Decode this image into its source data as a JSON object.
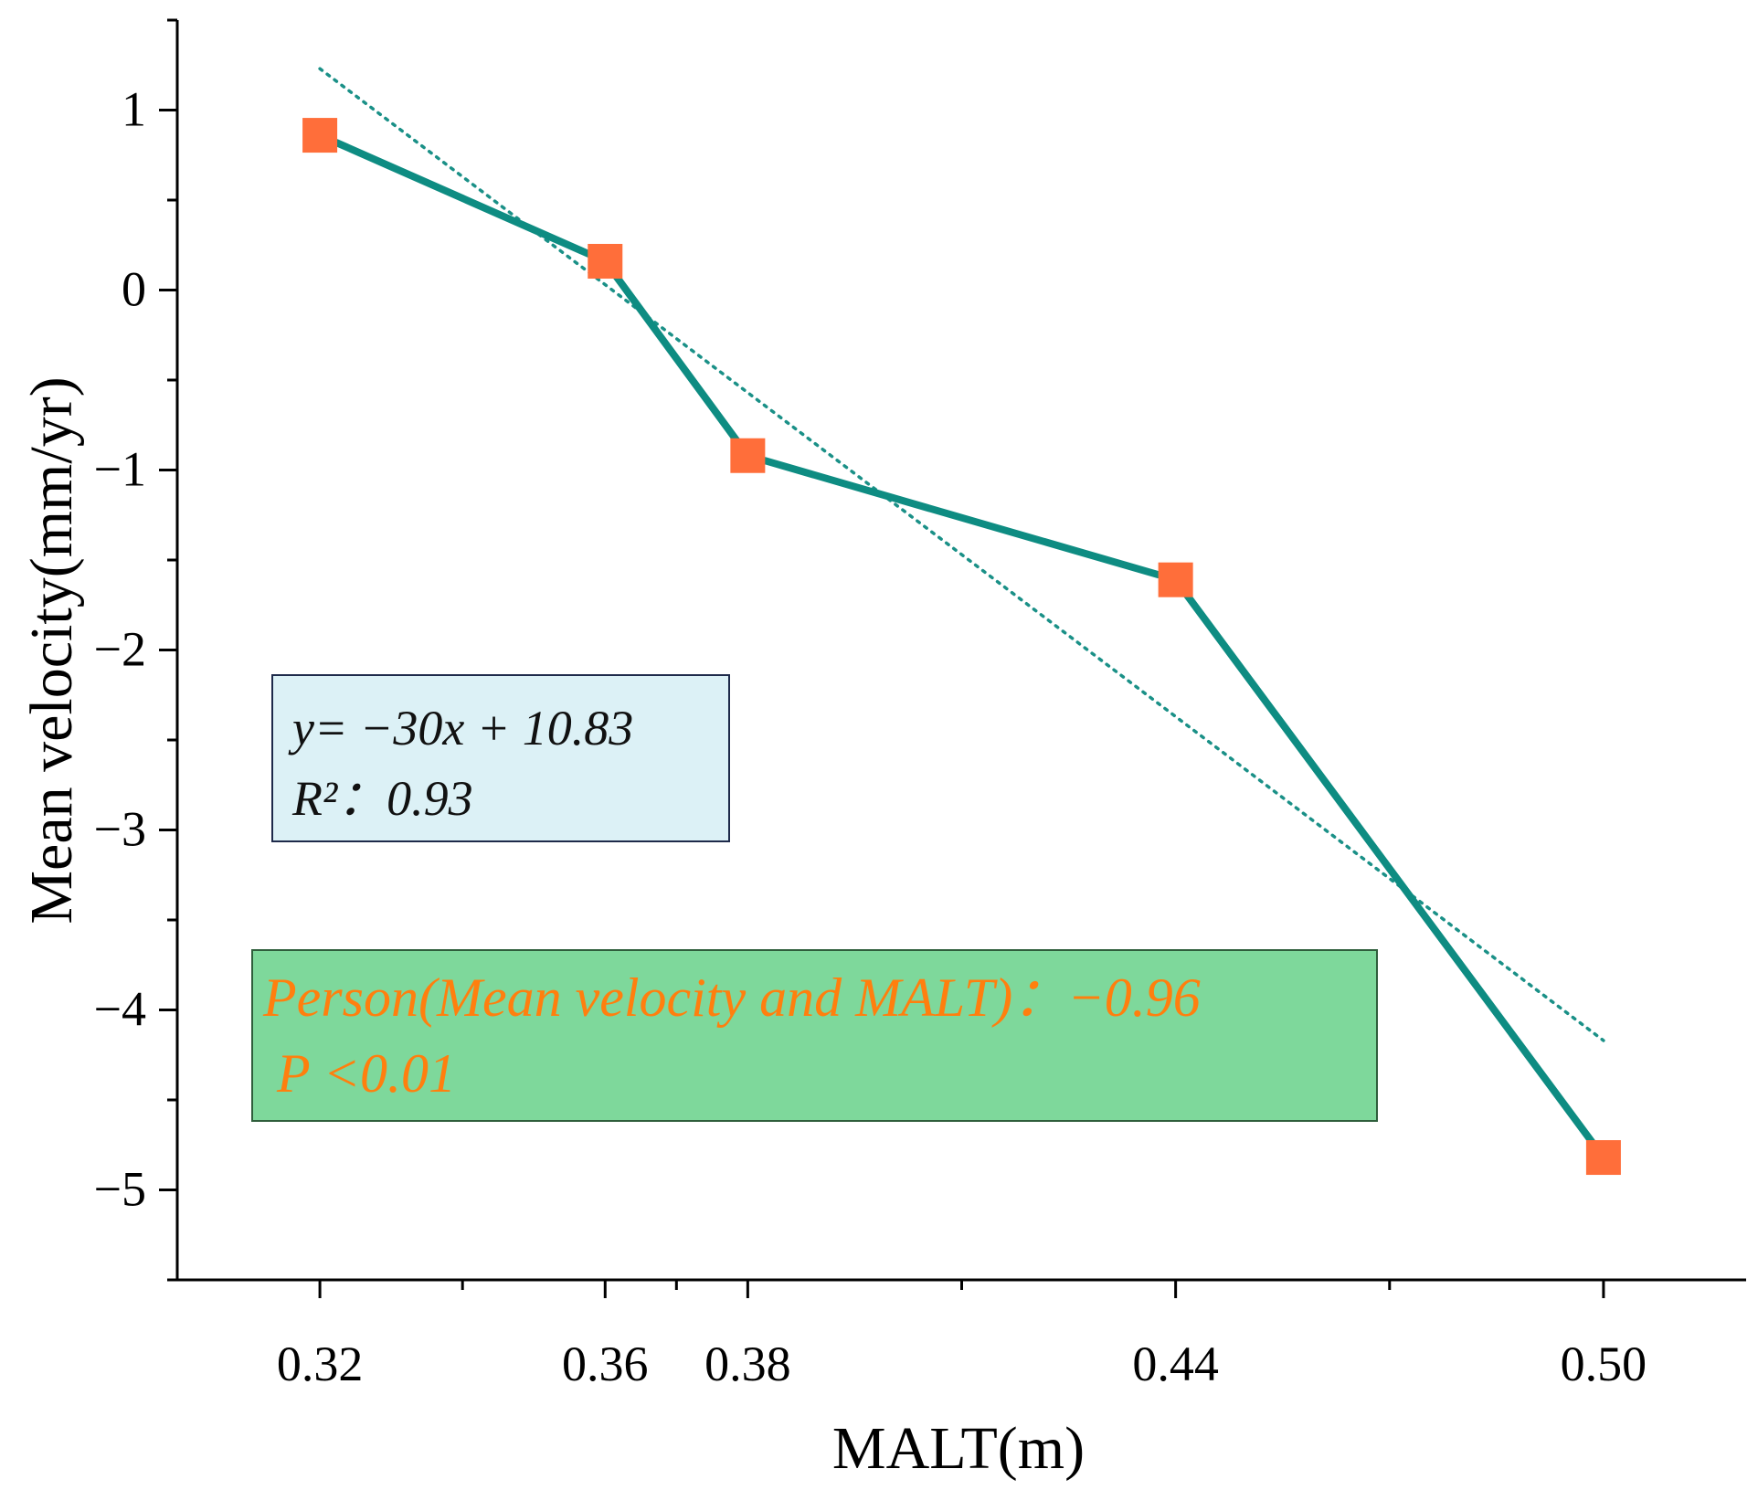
{
  "chart_data": {
    "type": "line",
    "title": "",
    "xlabel": "MALT(m)",
    "ylabel": "Mean velocity(mm/yr)",
    "xlim": [
      0.3,
      0.52
    ],
    "ylim": [
      -5.5,
      1.5
    ],
    "x_ticks": [
      0.32,
      0.36,
      0.38,
      0.44,
      0.5
    ],
    "x_tick_labels": [
      "0.32",
      "0.36",
      "0.38",
      "0.44",
      "0.50"
    ],
    "x_minor_ticks": [
      0.34,
      0.37,
      0.41,
      0.47
    ],
    "y_ticks": [
      1,
      0,
      -1,
      -2,
      -3,
      -4,
      -5
    ],
    "y_tick_labels": [
      "1",
      "0",
      "−1",
      "−2",
      "−3",
      "−4",
      "−5"
    ],
    "y_minor_ticks": [
      1.5,
      0.5,
      -0.5,
      -1.5,
      -2.5,
      -3.5,
      -4.5,
      -5.5
    ],
    "grid": false,
    "series": [
      {
        "name": "Mean velocity",
        "x": [
          0.32,
          0.36,
          0.38,
          0.44,
          0.5
        ],
        "y": [
          0.86,
          0.16,
          -0.92,
          -1.61,
          -4.82
        ],
        "line_color": "#0E8C82",
        "marker": "square",
        "marker_color": "#FF6E3A"
      },
      {
        "name": "Linear fit",
        "style": "dotted",
        "x_range": [
          0.32,
          0.5
        ],
        "slope": -30,
        "intercept": 10.83,
        "color": "#1A9087"
      }
    ],
    "annotations": [
      {
        "id": "fit-box",
        "lines": [
          "y= −30x + 10.83",
          "R²：0.93"
        ],
        "text_color": "#111111",
        "bg_color": "#DCF1F6",
        "border_color": "#1E2A4A"
      },
      {
        "id": "pearson-box",
        "lines": [
          "Person(Mean velocity and MALT)：−0.96",
          " P <0.01"
        ],
        "text_color": "#FF7F0E",
        "bg_color": "#7ED89B",
        "border_color": "#2F5E3C"
      }
    ]
  }
}
